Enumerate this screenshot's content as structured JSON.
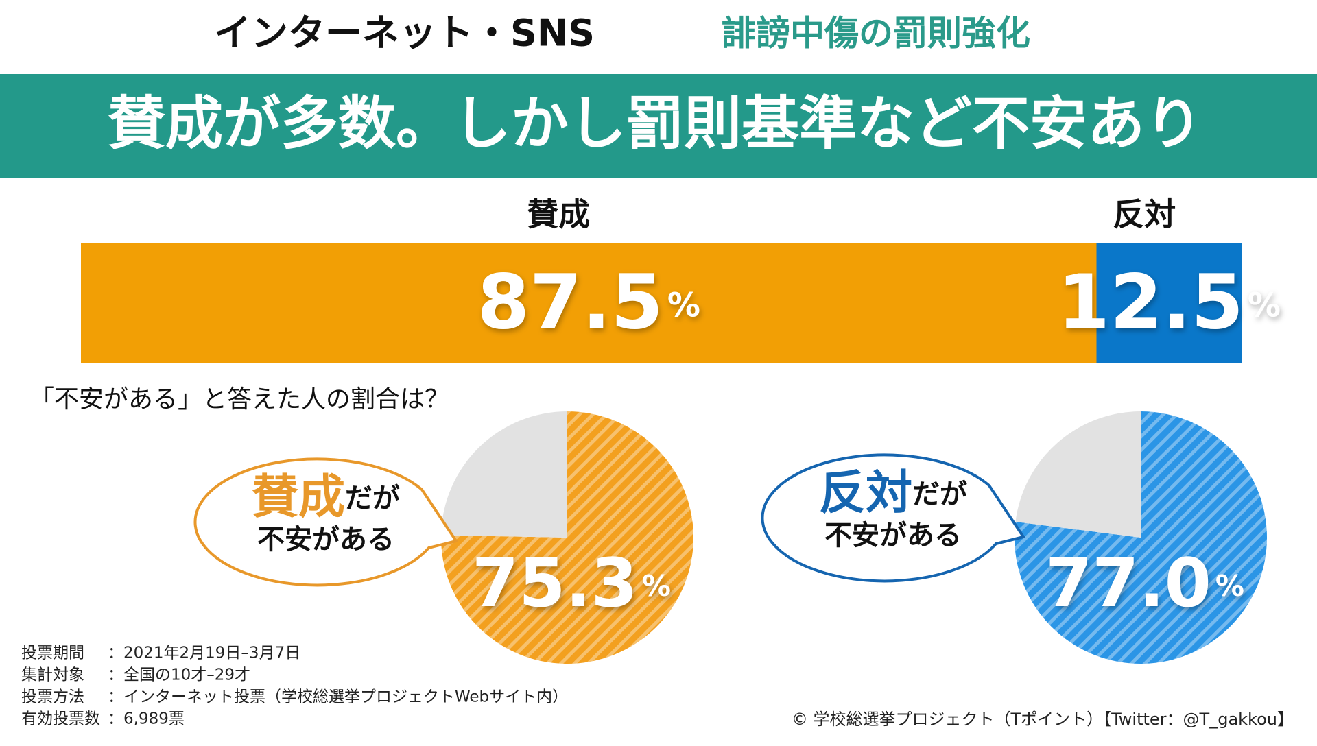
{
  "header": {
    "title": "インターネット・SNS",
    "subtitle": "誹謗中傷の罰則強化",
    "headline": "賛成が多数。しかし罰則基準など不安あり"
  },
  "question": "「不安がある」と答えた人の割合は？",
  "chart_data": [
    {
      "type": "bar",
      "categories": [
        "賛成",
        "反対"
      ],
      "values": [
        87.5,
        12.5
      ],
      "colors": [
        "#f29f05",
        "#0a77c9"
      ],
      "unit": "%"
    },
    {
      "type": "pie",
      "values": [
        75.3,
        24.7
      ],
      "colors": [
        "#f3a01f",
        "#e2e2e2"
      ],
      "unit": "%",
      "callout": {
        "emphasis": "賛成",
        "rest": "だが",
        "line2": "不安がある"
      }
    },
    {
      "type": "pie",
      "values": [
        77.0,
        23.0
      ],
      "value_labels": [
        "77.0",
        null
      ],
      "colors": [
        "#2b95e6",
        "#e2e2e2"
      ],
      "unit": "%",
      "callout": {
        "emphasis": "反対",
        "rest": "だが",
        "line2": "不安がある"
      }
    }
  ],
  "notes": [
    {
      "label": "投票期間",
      "value": "：2021年2月19日–3月7日"
    },
    {
      "label": "集計対象",
      "value": "：全国の10才–29才"
    },
    {
      "label": "投票方法",
      "value": "：インターネット投票（学校総選挙プロジェクトWebサイト内）"
    },
    {
      "label": "有効投票数",
      "value": "：6,989票"
    }
  ],
  "copyright": "© 学校総選挙プロジェクト（Tポイント）【Twitter：@T_gakkou】"
}
